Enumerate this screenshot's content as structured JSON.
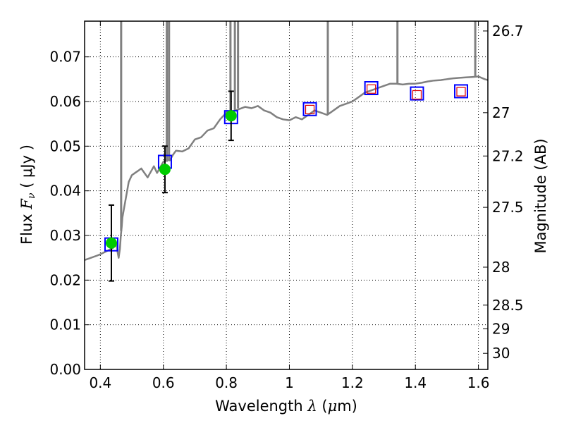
{
  "chart_data": {
    "type": "scatter",
    "xlabel": "Wavelength",
    "xlabel_symbol": "λ",
    "xlabel_unit_open": " (",
    "xlabel_unit_mu": "μ",
    "xlabel_unit_close": "m)",
    "ylabel": "Flux",
    "ylabel_symbol": "F",
    "ylabel_subscript": "ν",
    "ylabel_unit": " (  μJy )",
    "y2label": "Magnitude (AB)",
    "xlim": [
      0.35,
      1.63
    ],
    "ylim": [
      0.0,
      0.078
    ],
    "grid": true,
    "x_ticks": [
      {
        "value": 0.4,
        "label": "0.4"
      },
      {
        "value": 0.6,
        "label": "0.6"
      },
      {
        "value": 0.8,
        "label": "0.8"
      },
      {
        "value": 1.0,
        "label": "1"
      },
      {
        "value": 1.2,
        "label": "1.2"
      },
      {
        "value": 1.4,
        "label": "1.4"
      },
      {
        "value": 1.6,
        "label": "1.6"
      }
    ],
    "y_ticks": [
      {
        "value": 0.0,
        "label": "0.00"
      },
      {
        "value": 0.01,
        "label": "0.01"
      },
      {
        "value": 0.02,
        "label": "0.02"
      },
      {
        "value": 0.03,
        "label": "0.03"
      },
      {
        "value": 0.04,
        "label": "0.04"
      },
      {
        "value": 0.05,
        "label": "0.05"
      },
      {
        "value": 0.06,
        "label": "0.06"
      },
      {
        "value": 0.07,
        "label": "0.07"
      }
    ],
    "y2_ticks": [
      {
        "flux": 0.0758,
        "label": "26.7"
      },
      {
        "flux": 0.0575,
        "label": "27"
      },
      {
        "flux": 0.0478,
        "label": "27.2"
      },
      {
        "flux": 0.0363,
        "label": "27.5"
      },
      {
        "flux": 0.0229,
        "label": "28"
      },
      {
        "flux": 0.0144,
        "label": "28.5"
      },
      {
        "flux": 0.0091,
        "label": "29"
      },
      {
        "flux": 0.0036,
        "label": "30"
      }
    ],
    "colors": {
      "model": "#808080",
      "model_box": "#0000ff",
      "observed": "#00cc00",
      "upper_box": "#dd0000",
      "errorbar": "#000000",
      "grid": "#000000"
    },
    "model_spectrum": {
      "x": [
        0.35,
        0.37,
        0.39,
        0.4,
        0.42,
        0.44,
        0.445,
        0.45,
        0.455,
        0.458,
        0.462,
        0.465,
        0.468,
        0.47,
        0.48,
        0.49,
        0.5,
        0.51,
        0.52,
        0.53,
        0.55,
        0.57,
        0.58,
        0.6,
        0.61,
        0.62,
        0.63,
        0.64,
        0.66,
        0.68,
        0.7,
        0.72,
        0.74,
        0.76,
        0.78,
        0.8,
        0.82,
        0.84,
        0.86,
        0.88,
        0.9,
        0.92,
        0.94,
        0.96,
        0.98,
        1.0,
        1.02,
        1.04,
        1.06,
        1.08,
        1.1,
        1.12,
        1.14,
        1.16,
        1.18,
        1.2,
        1.22,
        1.24,
        1.26,
        1.28,
        1.3,
        1.32,
        1.34,
        1.36,
        1.38,
        1.4,
        1.42,
        1.44,
        1.46,
        1.48,
        1.5,
        1.52,
        1.54,
        1.56,
        1.58,
        1.6,
        1.62,
        1.63
      ],
      "y": [
        0.0245,
        0.025,
        0.0255,
        0.0258,
        0.0265,
        0.0272,
        0.0278,
        0.0285,
        0.0262,
        0.025,
        0.027,
        0.03,
        0.032,
        0.034,
        0.038,
        0.042,
        0.0435,
        0.044,
        0.0445,
        0.045,
        0.043,
        0.0455,
        0.044,
        0.0465,
        0.047,
        0.0468,
        0.048,
        0.049,
        0.0488,
        0.0495,
        0.0515,
        0.052,
        0.0535,
        0.054,
        0.056,
        0.0575,
        0.0578,
        0.0583,
        0.0588,
        0.0585,
        0.059,
        0.058,
        0.0575,
        0.0565,
        0.056,
        0.0558,
        0.0565,
        0.056,
        0.057,
        0.058,
        0.0575,
        0.057,
        0.058,
        0.059,
        0.0595,
        0.06,
        0.061,
        0.062,
        0.0625,
        0.063,
        0.0635,
        0.064,
        0.064,
        0.0638,
        0.064,
        0.064,
        0.0642,
        0.0645,
        0.0647,
        0.0648,
        0.065,
        0.0652,
        0.0653,
        0.0654,
        0.0655,
        0.0656,
        0.065,
        0.0648
      ]
    },
    "emission_lines": [
      {
        "x": 0.466,
        "y_base": 0.031
      },
      {
        "x": 0.611,
        "y_base": 0.0465
      },
      {
        "x": 0.618,
        "y_base": 0.047
      },
      {
        "x": 0.813,
        "y_base": 0.0578
      },
      {
        "x": 0.827,
        "y_base": 0.058
      },
      {
        "x": 0.837,
        "y_base": 0.0585
      },
      {
        "x": 1.122,
        "y_base": 0.0572
      },
      {
        "x": 1.343,
        "y_base": 0.0638
      },
      {
        "x": 1.59,
        "y_base": 0.0656
      }
    ],
    "model_photometry": {
      "x": [
        0.435,
        0.605,
        0.815,
        1.065,
        1.26,
        1.405,
        1.545
      ],
      "y": [
        0.028,
        0.0465,
        0.0565,
        0.0583,
        0.063,
        0.0618,
        0.0623
      ]
    },
    "observed": {
      "x": [
        0.435,
        0.605,
        0.815
      ],
      "y": [
        0.0283,
        0.0448,
        0.0568
      ],
      "err": [
        0.0085,
        0.0052,
        0.0055
      ]
    },
    "upper_limits": {
      "x": [
        1.065,
        1.26,
        1.405,
        1.545
      ],
      "y": [
        0.0582,
        0.0628,
        0.0615,
        0.0622
      ]
    }
  }
}
